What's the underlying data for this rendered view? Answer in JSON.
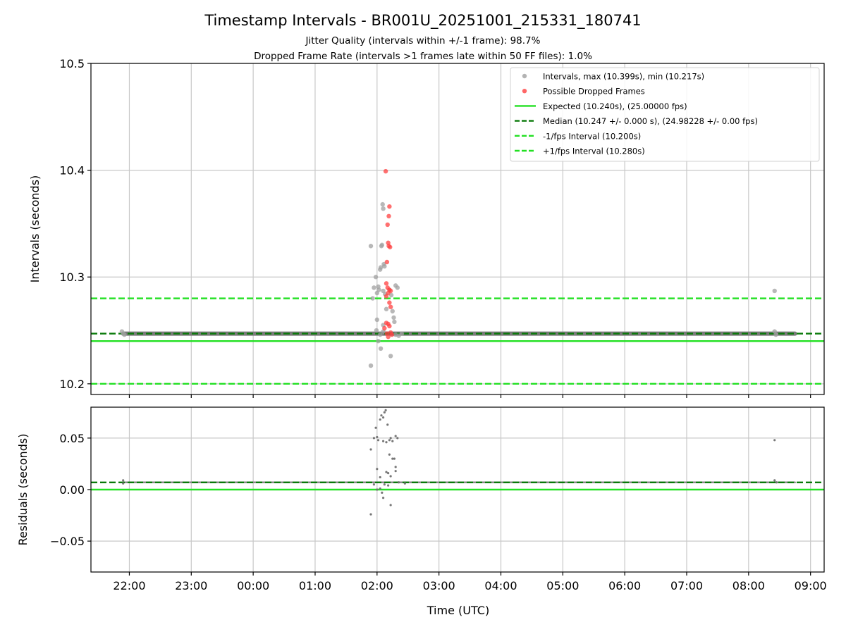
{
  "chart_data": [
    {
      "type": "scatter",
      "title": "Timestamp Intervals - BR001U_20251001_215331_180741",
      "subtitle_lines": [
        "Jitter Quality (intervals within +/-1 frame): 98.7%",
        "Dropped Frame Rate (intervals >1 frames late within 50 FF files): 1.0%"
      ],
      "ylabel": "Intervals (seconds)",
      "xlabel": "",
      "ylim": [
        10.19,
        10.5
      ],
      "yticks": [
        10.2,
        10.3,
        10.4,
        10.5
      ],
      "ytick_labels": [
        "10.2",
        "10.3",
        "10.4",
        "10.5"
      ],
      "x_unit": "hours since 00:00 UTC, 2025-10-02",
      "xlim": [
        -2.62,
        9.22
      ],
      "grid": true,
      "legend_position": "top-right",
      "legend": [
        {
          "kind": "marker",
          "color": "#a0a0a0",
          "label": "Intervals, max (10.399s), min (10.217s)"
        },
        {
          "kind": "marker",
          "color": "#ff4040",
          "label": "Possible Dropped Frames"
        },
        {
          "kind": "line",
          "color": "#22e022",
          "dash": "solid",
          "label": "Expected (10.240s), (25.00000 fps)"
        },
        {
          "kind": "line",
          "color": "#0a7a0a",
          "dash": "dashed",
          "label": "Median (10.247 +/- 0.000 s), (24.98228 +/- 0.00 fps)"
        },
        {
          "kind": "line",
          "color": "#22e022",
          "dash": "dashed",
          "label": "-1/fps Interval (10.200s)"
        },
        {
          "kind": "line",
          "color": "#22e022",
          "dash": "dashed",
          "label": "+1/fps Interval (10.280s)"
        }
      ],
      "reference_lines": [
        {
          "name": "expected",
          "y": 10.24,
          "color": "#22e022",
          "dash": "solid"
        },
        {
          "name": "median",
          "y": 10.247,
          "color": "#0a7a0a",
          "dash": "dashed"
        },
        {
          "name": "minus-one-frame",
          "y": 10.2,
          "color": "#22e022",
          "dash": "dashed"
        },
        {
          "name": "plus-one-frame",
          "y": 10.28,
          "color": "#22e022",
          "dash": "dashed"
        }
      ],
      "baseline_band": {
        "x_start": -2.1,
        "x_end": 8.75,
        "y": 10.247
      },
      "series": [
        {
          "name": "Intervals, max (10.399s), min (10.217s)",
          "color": "#a0a0a0",
          "points": [
            [
              -2.1,
              10.247
            ],
            [
              -2.12,
              10.249
            ],
            [
              -2.08,
              10.246
            ],
            [
              1.9,
              10.329
            ],
            [
              1.93,
              10.28
            ],
            [
              1.95,
              10.29
            ],
            [
              1.98,
              10.3
            ],
            [
              2.0,
              10.285
            ],
            [
              2.02,
              10.291
            ],
            [
              2.03,
              10.288
            ],
            [
              2.05,
              10.307
            ],
            [
              2.06,
              10.309
            ],
            [
              2.07,
              10.329
            ],
            [
              2.08,
              10.33
            ],
            [
              2.09,
              10.368
            ],
            [
              2.1,
              10.364
            ],
            [
              2.11,
              10.312
            ],
            [
              2.12,
              10.31
            ],
            [
              2.1,
              10.287
            ],
            [
              2.13,
              10.284
            ],
            [
              2.0,
              10.26
            ],
            [
              1.99,
              10.25
            ],
            [
              2.02,
              10.24
            ],
            [
              2.06,
              10.233
            ],
            [
              2.1,
              10.255
            ],
            [
              2.15,
              10.27
            ],
            [
              2.2,
              10.288
            ],
            [
              2.23,
              10.283
            ],
            [
              2.25,
              10.268
            ],
            [
              2.27,
              10.262
            ],
            [
              2.28,
              10.258
            ],
            [
              2.3,
              10.292
            ],
            [
              2.33,
              10.29
            ],
            [
              2.22,
              10.226
            ],
            [
              1.9,
              10.217
            ],
            [
              2.05,
              10.246
            ],
            [
              2.1,
              10.249
            ],
            [
              2.3,
              10.246
            ],
            [
              2.35,
              10.245
            ],
            [
              2.4,
              10.247
            ],
            [
              8.42,
              10.287
            ],
            [
              8.42,
              10.249
            ],
            [
              8.44,
              10.246
            ]
          ]
        },
        {
          "name": "Possible Dropped Frames",
          "color": "#ff4040",
          "points": [
            [
              2.14,
              10.399
            ],
            [
              2.2,
              10.366
            ],
            [
              2.19,
              10.357
            ],
            [
              2.17,
              10.349
            ],
            [
              2.18,
              10.332
            ],
            [
              2.19,
              10.329
            ],
            [
              2.21,
              10.328
            ],
            [
              2.16,
              10.314
            ],
            [
              2.15,
              10.294
            ],
            [
              2.17,
              10.29
            ],
            [
              2.2,
              10.288
            ],
            [
              2.22,
              10.287
            ],
            [
              2.18,
              10.285
            ],
            [
              2.15,
              10.282
            ],
            [
              2.2,
              10.276
            ],
            [
              2.22,
              10.272
            ],
            [
              2.15,
              10.257
            ],
            [
              2.18,
              10.256
            ],
            [
              2.2,
              10.254
            ],
            [
              2.12,
              10.252
            ],
            [
              2.22,
              10.248
            ],
            [
              2.16,
              10.247
            ],
            [
              2.24,
              10.246
            ],
            [
              2.18,
              10.244
            ]
          ]
        }
      ]
    },
    {
      "type": "scatter",
      "ylabel": "Residuals (seconds)",
      "xlabel": "Time (UTC)",
      "ylim": [
        -0.08,
        0.08
      ],
      "yticks": [
        -0.05,
        0.0,
        0.05
      ],
      "ytick_labels": [
        "−0.05",
        "0.00",
        "0.05"
      ],
      "xlim": [
        -2.62,
        9.22
      ],
      "xticks": [
        -2,
        -1,
        0,
        1,
        2,
        3,
        4,
        5,
        6,
        7,
        8,
        9
      ],
      "xtick_labels": [
        "22:00",
        "23:00",
        "00:00",
        "01:00",
        "02:00",
        "03:00",
        "04:00",
        "05:00",
        "06:00",
        "07:00",
        "08:00",
        "09:00"
      ],
      "grid": true,
      "reference_lines": [
        {
          "name": "zero",
          "y": 0.0,
          "color": "#22e022",
          "dash": "solid"
        },
        {
          "name": "median-offset",
          "y": 0.007,
          "color": "#0a7a0a",
          "dash": "dashed"
        }
      ],
      "baseline_band": {
        "x_start": -2.1,
        "x_end": 8.75,
        "y": 0.007
      },
      "series": [
        {
          "name": "",
          "color": "#707070",
          "points": [
            [
              -2.1,
              0.009
            ],
            [
              -2.1,
              0.006
            ],
            [
              1.9,
              -0.024
            ],
            [
              1.9,
              0.039
            ],
            [
              1.95,
              0.05
            ],
            [
              1.98,
              0.06
            ],
            [
              2.0,
              0.051
            ],
            [
              2.02,
              0.048
            ],
            [
              2.05,
              0.068
            ],
            [
              2.07,
              0.072
            ],
            [
              2.1,
              0.07
            ],
            [
              2.12,
              0.075
            ],
            [
              2.14,
              0.077
            ],
            [
              2.1,
              0.047
            ],
            [
              2.15,
              0.046
            ],
            [
              2.17,
              0.063
            ],
            [
              2.2,
              0.048
            ],
            [
              2.22,
              0.05
            ],
            [
              2.25,
              0.047
            ],
            [
              2.3,
              0.052
            ],
            [
              2.33,
              0.05
            ],
            [
              2.2,
              0.034
            ],
            [
              2.25,
              0.03
            ],
            [
              2.28,
              0.03
            ],
            [
              2.3,
              0.022
            ],
            [
              2.3,
              0.018
            ],
            [
              2.0,
              0.02
            ],
            [
              2.05,
              0.012
            ],
            [
              2.15,
              0.017
            ],
            [
              2.18,
              0.016
            ],
            [
              2.22,
              0.013
            ],
            [
              2.0,
              0.0
            ],
            [
              2.05,
              0.001
            ],
            [
              2.08,
              -0.003
            ],
            [
              2.1,
              -0.008
            ],
            [
              2.22,
              -0.015
            ],
            [
              1.95,
              0.005
            ],
            [
              2.12,
              0.005
            ],
            [
              2.18,
              0.004
            ],
            [
              2.35,
              0.007
            ],
            [
              2.45,
              0.006
            ],
            [
              8.42,
              0.048
            ],
            [
              8.42,
              0.009
            ],
            [
              8.45,
              0.007
            ]
          ]
        }
      ]
    }
  ]
}
